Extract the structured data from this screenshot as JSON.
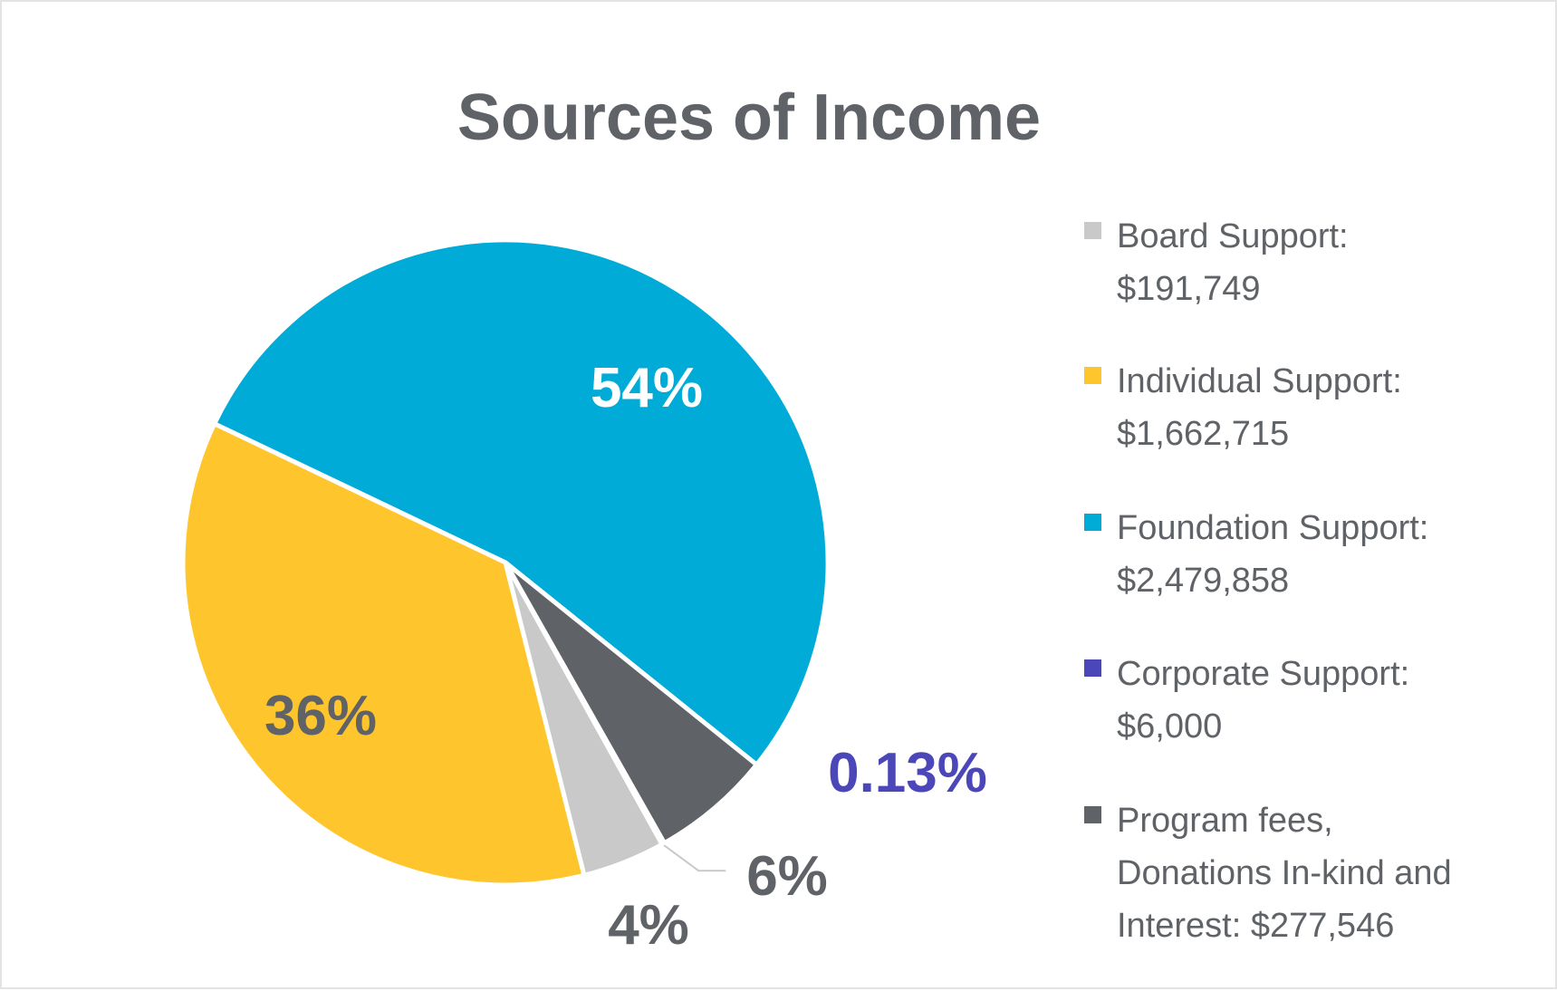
{
  "chart_data": {
    "type": "pie",
    "title": "Sources of Income",
    "slices": [
      {
        "name": "Board Support",
        "legend_label": "Board Support:",
        "legend_value": "$191,749",
        "value": 191749,
        "percent_label": "4%",
        "color": "#c9c9c9",
        "label_color": "#5f6266"
      },
      {
        "name": "Individual Support",
        "legend_label": "Individual Support:",
        "legend_value": "$1,662,715",
        "value": 1662715,
        "percent_label": "36%",
        "color": "#ffc52d",
        "label_color": "#5f6266"
      },
      {
        "name": "Foundation Support",
        "legend_label": "Foundation Support:",
        "legend_value": "$2,479,858",
        "value": 2479858,
        "percent_label": "54%",
        "color": "#00acd7",
        "label_color": "#ffffff"
      },
      {
        "name": "Corporate Support",
        "legend_label": "Corporate Support:",
        "legend_value": "$6,000",
        "value": 6000,
        "percent_label": "0.13%",
        "color": "#4b47b9",
        "label_color": "#4b47b9"
      },
      {
        "name": "Program fees, Donations In-kind and Interest",
        "legend_lines": [
          "Program fees,",
          "Donations In-kind and",
          "Interest: $277,546"
        ],
        "value": 277546,
        "percent_label": "6%",
        "color": "#5f6266",
        "label_color": "#5f6266"
      }
    ],
    "legend_position": "right"
  }
}
